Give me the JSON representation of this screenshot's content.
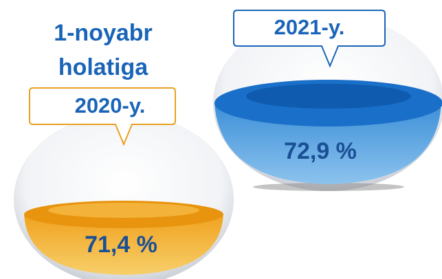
{
  "title_lines": [
    "1-noyabr",
    "holatiga"
  ],
  "items": [
    {
      "label": "2020-y.",
      "value": "71,4 %"
    },
    {
      "label": "2021-y.",
      "value": "72,9 %"
    }
  ]
}
